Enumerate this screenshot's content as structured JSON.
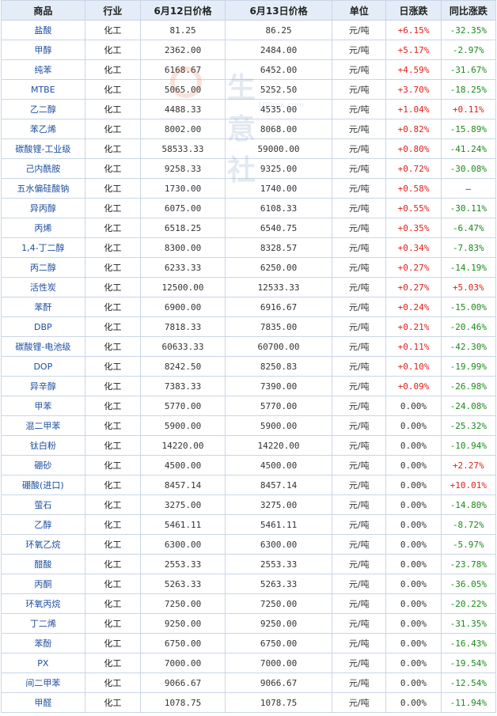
{
  "headers": [
    "商品",
    "行业",
    "6月12日价格",
    "6月13日价格",
    "单位",
    "日涨跌",
    "同比涨跌"
  ],
  "rows": [
    {
      "name": "盐酸",
      "industry": "化工",
      "p12": "81.25",
      "p13": "86.25",
      "unit": "元/吨",
      "day": "+6.15%",
      "yoy": "-32.35%"
    },
    {
      "name": "甲醇",
      "industry": "化工",
      "p12": "2362.00",
      "p13": "2484.00",
      "unit": "元/吨",
      "day": "+5.17%",
      "yoy": "-2.97%"
    },
    {
      "name": "纯苯",
      "industry": "化工",
      "p12": "6168.67",
      "p13": "6452.00",
      "unit": "元/吨",
      "day": "+4.59%",
      "yoy": "-31.67%"
    },
    {
      "name": "MTBE",
      "industry": "化工",
      "p12": "5065.00",
      "p13": "5252.50",
      "unit": "元/吨",
      "day": "+3.70%",
      "yoy": "-18.25%"
    },
    {
      "name": "乙二醇",
      "industry": "化工",
      "p12": "4488.33",
      "p13": "4535.00",
      "unit": "元/吨",
      "day": "+1.04%",
      "yoy": "+0.11%"
    },
    {
      "name": "苯乙烯",
      "industry": "化工",
      "p12": "8002.00",
      "p13": "8068.00",
      "unit": "元/吨",
      "day": "+0.82%",
      "yoy": "-15.89%"
    },
    {
      "name": "碳酸锂-工业级",
      "industry": "化工",
      "p12": "58533.33",
      "p13": "59000.00",
      "unit": "元/吨",
      "day": "+0.80%",
      "yoy": "-41.24%"
    },
    {
      "name": "己内酰胺",
      "industry": "化工",
      "p12": "9258.33",
      "p13": "9325.00",
      "unit": "元/吨",
      "day": "+0.72%",
      "yoy": "-30.08%"
    },
    {
      "name": "五水偏硅酸钠",
      "industry": "化工",
      "p12": "1730.00",
      "p13": "1740.00",
      "unit": "元/吨",
      "day": "+0.58%",
      "yoy": "—"
    },
    {
      "name": "异丙醇",
      "industry": "化工",
      "p12": "6075.00",
      "p13": "6108.33",
      "unit": "元/吨",
      "day": "+0.55%",
      "yoy": "-30.11%"
    },
    {
      "name": "丙烯",
      "industry": "化工",
      "p12": "6518.25",
      "p13": "6540.75",
      "unit": "元/吨",
      "day": "+0.35%",
      "yoy": "-6.47%"
    },
    {
      "name": "1,4-丁二醇",
      "industry": "化工",
      "p12": "8300.00",
      "p13": "8328.57",
      "unit": "元/吨",
      "day": "+0.34%",
      "yoy": "-7.83%"
    },
    {
      "name": "丙二醇",
      "industry": "化工",
      "p12": "6233.33",
      "p13": "6250.00",
      "unit": "元/吨",
      "day": "+0.27%",
      "yoy": "-14.19%"
    },
    {
      "name": "活性炭",
      "industry": "化工",
      "p12": "12500.00",
      "p13": "12533.33",
      "unit": "元/吨",
      "day": "+0.27%",
      "yoy": "+5.03%"
    },
    {
      "name": "苯酐",
      "industry": "化工",
      "p12": "6900.00",
      "p13": "6916.67",
      "unit": "元/吨",
      "day": "+0.24%",
      "yoy": "-15.00%"
    },
    {
      "name": "DBP",
      "industry": "化工",
      "p12": "7818.33",
      "p13": "7835.00",
      "unit": "元/吨",
      "day": "+0.21%",
      "yoy": "-20.46%"
    },
    {
      "name": "碳酸锂-电池级",
      "industry": "化工",
      "p12": "60633.33",
      "p13": "60700.00",
      "unit": "元/吨",
      "day": "+0.11%",
      "yoy": "-42.30%"
    },
    {
      "name": "DOP",
      "industry": "化工",
      "p12": "8242.50",
      "p13": "8250.83",
      "unit": "元/吨",
      "day": "+0.10%",
      "yoy": "-19.99%"
    },
    {
      "name": "异辛醇",
      "industry": "化工",
      "p12": "7383.33",
      "p13": "7390.00",
      "unit": "元/吨",
      "day": "+0.09%",
      "yoy": "-26.98%"
    },
    {
      "name": "甲苯",
      "industry": "化工",
      "p12": "5770.00",
      "p13": "5770.00",
      "unit": "元/吨",
      "day": "0.00%",
      "yoy": "-24.08%"
    },
    {
      "name": "混二甲苯",
      "industry": "化工",
      "p12": "5900.00",
      "p13": "5900.00",
      "unit": "元/吨",
      "day": "0.00%",
      "yoy": "-25.32%"
    },
    {
      "name": "钛白粉",
      "industry": "化工",
      "p12": "14220.00",
      "p13": "14220.00",
      "unit": "元/吨",
      "day": "0.00%",
      "yoy": "-10.94%"
    },
    {
      "name": "硼砂",
      "industry": "化工",
      "p12": "4500.00",
      "p13": "4500.00",
      "unit": "元/吨",
      "day": "0.00%",
      "yoy": "+2.27%"
    },
    {
      "name": "硼酸(进口)",
      "industry": "化工",
      "p12": "8457.14",
      "p13": "8457.14",
      "unit": "元/吨",
      "day": "0.00%",
      "yoy": "+10.01%"
    },
    {
      "name": "萤石",
      "industry": "化工",
      "p12": "3275.00",
      "p13": "3275.00",
      "unit": "元/吨",
      "day": "0.00%",
      "yoy": "-14.80%"
    },
    {
      "name": "乙醇",
      "industry": "化工",
      "p12": "5461.11",
      "p13": "5461.11",
      "unit": "元/吨",
      "day": "0.00%",
      "yoy": "-8.72%"
    },
    {
      "name": "环氧乙烷",
      "industry": "化工",
      "p12": "6300.00",
      "p13": "6300.00",
      "unit": "元/吨",
      "day": "0.00%",
      "yoy": "-5.97%"
    },
    {
      "name": "醋酸",
      "industry": "化工",
      "p12": "2553.33",
      "p13": "2553.33",
      "unit": "元/吨",
      "day": "0.00%",
      "yoy": "-23.78%"
    },
    {
      "name": "丙酮",
      "industry": "化工",
      "p12": "5263.33",
      "p13": "5263.33",
      "unit": "元/吨",
      "day": "0.00%",
      "yoy": "-36.05%"
    },
    {
      "name": "环氧丙烷",
      "industry": "化工",
      "p12": "7250.00",
      "p13": "7250.00",
      "unit": "元/吨",
      "day": "0.00%",
      "yoy": "-20.22%"
    },
    {
      "name": "丁二烯",
      "industry": "化工",
      "p12": "9250.00",
      "p13": "9250.00",
      "unit": "元/吨",
      "day": "0.00%",
      "yoy": "-31.35%"
    },
    {
      "name": "苯酚",
      "industry": "化工",
      "p12": "6750.00",
      "p13": "6750.00",
      "unit": "元/吨",
      "day": "0.00%",
      "yoy": "-16.43%"
    },
    {
      "name": "PX",
      "industry": "化工",
      "p12": "7000.00",
      "p13": "7000.00",
      "unit": "元/吨",
      "day": "0.00%",
      "yoy": "-19.54%"
    },
    {
      "name": "间二甲苯",
      "industry": "化工",
      "p12": "9066.67",
      "p13": "9066.67",
      "unit": "元/吨",
      "day": "0.00%",
      "yoy": "-12.54%"
    },
    {
      "name": "甲醛",
      "industry": "化工",
      "p12": "1078.75",
      "p13": "1078.75",
      "unit": "元/吨",
      "day": "0.00%",
      "yoy": "-11.94%"
    }
  ],
  "watermark": {
    "text": "生意社",
    "url": "100ppi.com"
  },
  "colors": {
    "up": "#e0201a",
    "down": "#1a8a1a",
    "flat": "#333333",
    "link": "#1e4fa0",
    "header_bg": "#e3ecf7"
  }
}
